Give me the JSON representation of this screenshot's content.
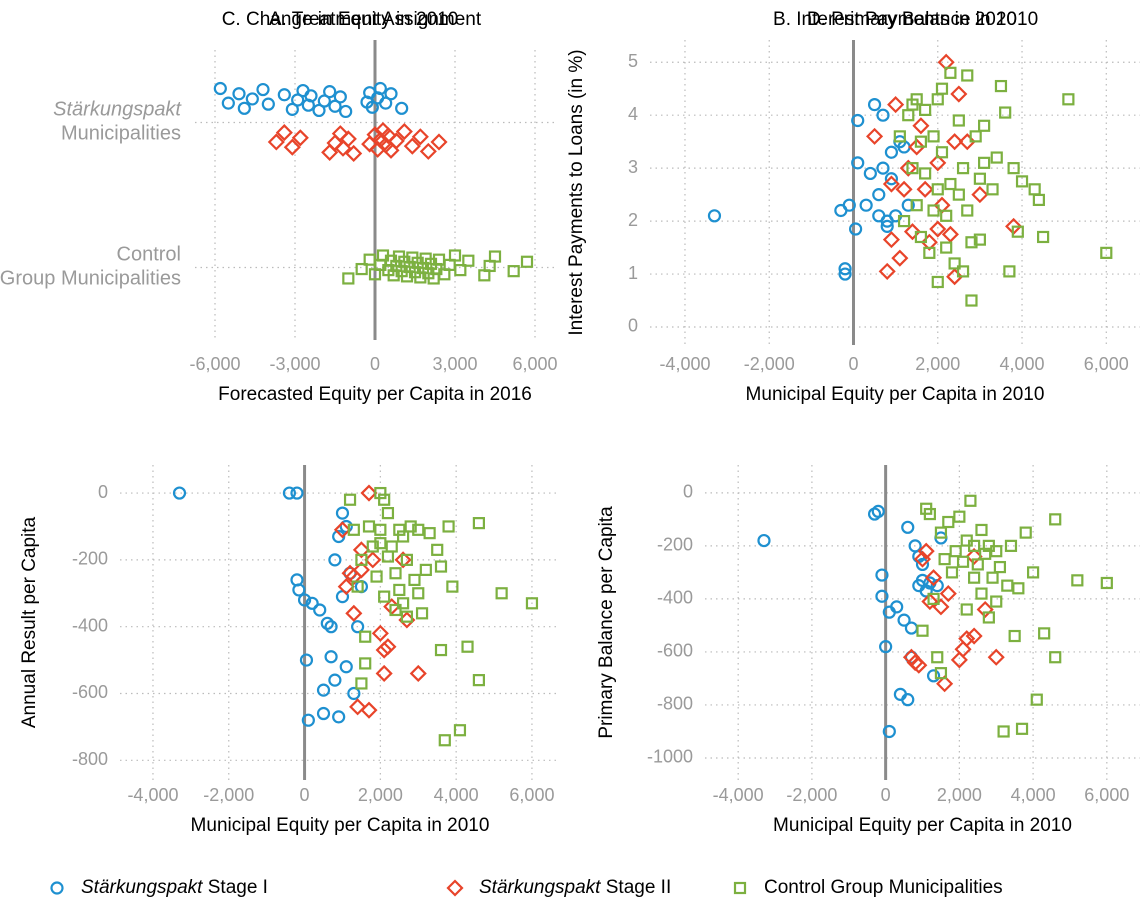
{
  "chart_data": [
    {
      "type": "strip",
      "title": "A. Treatment Assignment",
      "xlabel": "Forecasted Equity per Capita in 2016",
      "categories": [
        "Stärkungspakt Municipalities",
        "Control Group Municipalities"
      ],
      "category_italic_words": [
        1,
        0
      ],
      "xlim": [
        -6750,
        6750
      ],
      "xticks": [
        {
          "value": -6000,
          "label": "-6,000"
        },
        {
          "value": -3000,
          "label": "-3,000"
        },
        0,
        {
          "value": 3000,
          "label": "3,000"
        },
        {
          "value": 6000,
          "label": "6,000"
        }
      ],
      "grid": true,
      "series": [
        {
          "name": "Stärkungspakt Stage I",
          "italic_words": 1,
          "marker": "circle",
          "color": "#1e90d0",
          "category": 0,
          "x": [
            -5800,
            -5500,
            -5100,
            -4900,
            -4600,
            -4200,
            -4000,
            -3400,
            -3100,
            -2900,
            -2700,
            -2500,
            -2400,
            -2100,
            -1900,
            -1700,
            -1500,
            -1300,
            -1100,
            -300,
            -200,
            -100,
            100,
            200,
            400,
            600,
            1000
          ]
        },
        {
          "name": "Stärkungspakt Stage II",
          "italic_words": 1,
          "marker": "diamond",
          "color": "#e8442a",
          "category": 0,
          "x": [
            -3700,
            -3400,
            -3100,
            -2800,
            -1700,
            -1500,
            -1300,
            -1200,
            -1000,
            -800,
            -200,
            0,
            100,
            200,
            300,
            400,
            500,
            600,
            800,
            1100,
            1400,
            1700,
            2000,
            2400
          ]
        },
        {
          "name": "Control Group Municipalities",
          "italic_words": 0,
          "marker": "square",
          "color": "#7cb040",
          "category": 1,
          "x": [
            -1000,
            -500,
            -200,
            0,
            200,
            300,
            500,
            600,
            700,
            800,
            900,
            1000,
            1100,
            1200,
            1300,
            1400,
            1500,
            1600,
            1700,
            1800,
            1900,
            2000,
            2100,
            2200,
            2300,
            2400,
            2600,
            2800,
            3000,
            3200,
            3500,
            4100,
            4300,
            4500,
            5200,
            5700
          ]
        }
      ]
    },
    {
      "type": "scatter",
      "title": "B. Interest Payments in 2010",
      "xlabel": "Municipal Equity per Capita in 2010",
      "ylabel": "Interest Payments to Loans (in %)",
      "xlim": [
        -4830,
        6800
      ],
      "ylim": [
        -0.34,
        5.42
      ],
      "xticks": [
        {
          "value": -4000,
          "label": "-4,000"
        },
        {
          "value": -2000,
          "label": "-2,000"
        },
        0,
        {
          "value": 2000,
          "label": "2,000"
        },
        {
          "value": 4000,
          "label": "4,000"
        },
        {
          "value": 6000,
          "label": "6,000"
        }
      ],
      "yticks": [
        0,
        1,
        2,
        3,
        4,
        5
      ],
      "grid": true,
      "series": [
        {
          "color": "#1e90d0",
          "x": [
            -3300,
            -300,
            -200,
            -200,
            -100,
            50,
            100,
            100,
            300,
            400,
            500,
            600,
            600,
            700,
            700,
            800,
            800,
            900,
            900,
            1000,
            1100,
            1200,
            1300
          ],
          "y": [
            2.1,
            2.2,
            1.1,
            1.0,
            2.3,
            1.85,
            3.1,
            3.9,
            2.3,
            2.9,
            4.2,
            2.5,
            2.1,
            3.0,
            4.0,
            2.0,
            1.9,
            2.8,
            3.3,
            2.1,
            3.5,
            3.4,
            2.3
          ]
        },
        {
          "color": "#e8442a",
          "x": [
            500,
            800,
            900,
            900,
            1000,
            1100,
            1200,
            1300,
            1400,
            1500,
            1600,
            1700,
            1800,
            2000,
            2000,
            2100,
            2200,
            2300,
            2400,
            2400,
            2500,
            2700,
            3000,
            3800
          ],
          "y": [
            3.6,
            1.05,
            1.65,
            2.7,
            4.2,
            1.3,
            2.6,
            3.0,
            1.8,
            3.4,
            3.8,
            2.6,
            1.6,
            1.85,
            3.1,
            2.3,
            5.0,
            1.75,
            3.5,
            0.95,
            4.4,
            3.5,
            2.5,
            1.9
          ]
        },
        {
          "color": "#7cb040",
          "x": [
            1100,
            1200,
            1300,
            1400,
            1400,
            1500,
            1500,
            1600,
            1600,
            1700,
            1700,
            1800,
            1900,
            1900,
            2000,
            2000,
            2000,
            2100,
            2100,
            2200,
            2200,
            2300,
            2300,
            2400,
            2500,
            2500,
            2600,
            2600,
            2700,
            2700,
            2800,
            2800,
            2900,
            3000,
            3000,
            3100,
            3100,
            3300,
            3400,
            3500,
            3600,
            3700,
            3800,
            3900,
            4000,
            4300,
            4500,
            5100,
            6000,
            4400
          ],
          "y": [
            3.6,
            2.0,
            4.0,
            4.2,
            3.0,
            4.3,
            2.3,
            1.7,
            3.5,
            2.9,
            4.1,
            1.4,
            2.2,
            3.6,
            0.85,
            2.6,
            4.3,
            4.5,
            3.3,
            1.5,
            2.1,
            4.8,
            2.7,
            1.2,
            3.9,
            2.5,
            1.05,
            3.0,
            4.75,
            2.2,
            0.5,
            1.6,
            3.6,
            2.8,
            1.65,
            3.8,
            3.1,
            2.6,
            3.2,
            4.55,
            4.05,
            1.05,
            3.0,
            1.8,
            2.75,
            2.6,
            1.7,
            4.3,
            1.4,
            2.4
          ]
        }
      ]
    },
    {
      "type": "scatter",
      "title": "C. Change in Equity in 2010",
      "xlabel": "Municipal Equity per Capita in 2010",
      "ylabel": "Annual Result per Capita",
      "xlim": [
        -4870,
        6740
      ],
      "ylim": [
        -859,
        84
      ],
      "xticks": [
        {
          "value": -4000,
          "label": "-4,000"
        },
        {
          "value": -2000,
          "label": "-2,000"
        },
        0,
        {
          "value": 2000,
          "label": "2,000"
        },
        {
          "value": 4000,
          "label": "4,000"
        },
        {
          "value": 6000,
          "label": "6,000"
        }
      ],
      "yticks": [
        0,
        -200,
        -400,
        -600,
        -800
      ],
      "grid": true,
      "series": [
        {
          "color": "#1e90d0",
          "x": [
            -3300,
            -400,
            -200,
            -200,
            -150,
            0,
            50,
            100,
            200,
            400,
            500,
            500,
            600,
            700,
            700,
            800,
            800,
            900,
            900,
            1000,
            1000,
            1100,
            1200,
            1300,
            1400,
            1500,
            1100
          ],
          "y": [
            0,
            0,
            0,
            -260,
            -290,
            -320,
            -500,
            -680,
            -330,
            -350,
            -590,
            -660,
            -390,
            -400,
            -490,
            -200,
            -560,
            -670,
            -130,
            -60,
            -310,
            -100,
            -240,
            -600,
            -400,
            -280,
            -520
          ]
        },
        {
          "color": "#e8442a",
          "x": [
            1000,
            1100,
            1200,
            1300,
            1400,
            1500,
            1700,
            1700,
            1800,
            2000,
            2100,
            2100,
            2200,
            2300,
            2600,
            2700,
            3000,
            1500,
            1300
          ],
          "y": [
            -110,
            -280,
            -240,
            -360,
            -640,
            -230,
            -650,
            0,
            -200,
            -420,
            -470,
            -540,
            -460,
            -340,
            -200,
            -380,
            -540,
            -170,
            -250
          ]
        },
        {
          "color": "#7cb040",
          "x": [
            1200,
            1300,
            1400,
            1500,
            1500,
            1600,
            1600,
            1700,
            1800,
            1900,
            2000,
            2000,
            2100,
            2100,
            2200,
            2200,
            2300,
            2400,
            2400,
            2500,
            2500,
            2600,
            2700,
            2700,
            2800,
            2900,
            3000,
            3000,
            3100,
            3200,
            3300,
            3500,
            3600,
            3600,
            3800,
            3900,
            3700,
            4100,
            4300,
            4600,
            4600,
            5200,
            6000,
            2000,
            2600
          ],
          "y": [
            -20,
            -110,
            -280,
            -200,
            -570,
            -430,
            -510,
            -100,
            -160,
            -250,
            0,
            -110,
            -310,
            -20,
            -60,
            -190,
            -160,
            -240,
            -350,
            -110,
            -290,
            -130,
            -200,
            -370,
            -100,
            -260,
            -110,
            -300,
            -360,
            -230,
            -120,
            -170,
            -220,
            -470,
            -100,
            -280,
            -740,
            -710,
            -460,
            -90,
            -560,
            -300,
            -330,
            -150,
            -330
          ]
        }
      ]
    },
    {
      "type": "scatter",
      "title": "D. Primary Balance in 2010",
      "xlabel": "Municipal Equity per Capita in 2010",
      "ylabel": "Primary Balance per Capita",
      "xlim": [
        -4900,
        6900
      ],
      "ylim": [
        -1083,
        105
      ],
      "xticks": [
        {
          "value": -4000,
          "label": "-4,000"
        },
        {
          "value": -2000,
          "label": "-2,000"
        },
        0,
        {
          "value": 2000,
          "label": "2,000"
        },
        {
          "value": 4000,
          "label": "4,000"
        },
        {
          "value": 6000,
          "label": "6,000"
        }
      ],
      "yticks": [
        0,
        -200,
        -400,
        -600,
        -800,
        -1000
      ],
      "grid": true,
      "series": [
        {
          "color": "#1e90d0",
          "x": [
            -3300,
            -300,
            -200,
            -100,
            -100,
            0,
            100,
            100,
            300,
            400,
            500,
            600,
            600,
            700,
            700,
            800,
            900,
            900,
            1000,
            1100,
            1200,
            1300,
            1400,
            1500,
            1000
          ],
          "y": [
            -180,
            -80,
            -70,
            -310,
            -390,
            -580,
            -450,
            -900,
            -430,
            -760,
            -480,
            -130,
            -780,
            -510,
            -620,
            -200,
            -240,
            -350,
            -270,
            -370,
            -340,
            -690,
            -350,
            -170,
            -330
          ]
        },
        {
          "color": "#e8442a",
          "x": [
            700,
            800,
            900,
            1000,
            1100,
            1200,
            1300,
            1500,
            1600,
            1700,
            2000,
            2100,
            2200,
            2400,
            2400,
            2700,
            3000
          ],
          "y": [
            -620,
            -640,
            -650,
            -250,
            -220,
            -410,
            -320,
            -430,
            -720,
            -380,
            -630,
            -590,
            -550,
            -540,
            -240,
            -440,
            -620
          ]
        },
        {
          "color": "#7cb040",
          "x": [
            1000,
            1100,
            1200,
            1300,
            1400,
            1500,
            1600,
            1700,
            1800,
            1900,
            2000,
            2100,
            2200,
            2200,
            2300,
            2400,
            2400,
            2500,
            2600,
            2600,
            2700,
            2800,
            2900,
            3000,
            3000,
            3100,
            3200,
            3300,
            3400,
            3500,
            3600,
            3700,
            3800,
            4000,
            4100,
            4300,
            4600,
            4600,
            5200,
            6000,
            2800,
            1500
          ],
          "y": [
            -520,
            -60,
            -80,
            -400,
            -620,
            -150,
            -250,
            -110,
            -300,
            -220,
            -90,
            -260,
            -440,
            -180,
            -30,
            -200,
            -320,
            -270,
            -140,
            -380,
            -230,
            -200,
            -320,
            -220,
            -410,
            -280,
            -900,
            -350,
            -200,
            -540,
            -360,
            -890,
            -150,
            -300,
            -780,
            -530,
            -620,
            -100,
            -330,
            -340,
            -470,
            -680
          ]
        }
      ]
    }
  ]
}
